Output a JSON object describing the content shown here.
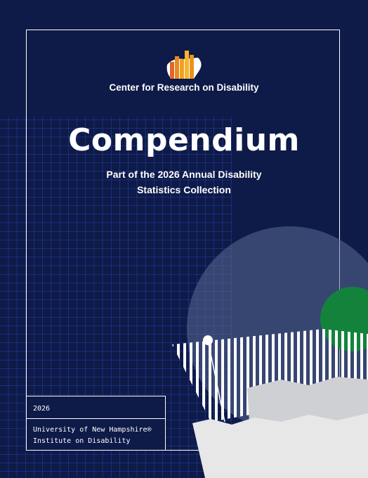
{
  "header": {
    "organization": "Center for Research on Disability"
  },
  "title": "Compendium",
  "subtitle": [
    "Part of the 2026 Annual Disability",
    "Statistics Collection"
  ],
  "footer": {
    "year": "2026",
    "institution": [
      "University of New Hampshire®",
      "Institute on Disability"
    ]
  }
}
